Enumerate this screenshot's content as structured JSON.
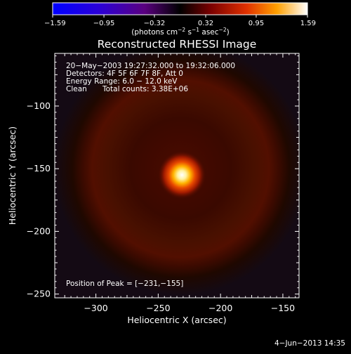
{
  "chart_data": {
    "type": "heatmap",
    "title": "Reconstructed RHESSI Image",
    "xlabel": "Heliocentric X (arcsec)",
    "ylabel": "Heliocentric Y (arcsec)",
    "xlim": [
      -333,
      -137
    ],
    "ylim": [
      -253,
      -58
    ],
    "xticks": [
      -300,
      -250,
      -200,
      -150
    ],
    "xtick_labels": [
      "−300",
      "−250",
      "−200",
      "−150"
    ],
    "yticks": [
      -100,
      -150,
      -200,
      -250
    ],
    "ytick_labels": [
      "−100",
      "−150",
      "−200",
      "−250"
    ],
    "colorbar": {
      "colormap": "red-temperature",
      "ticks": [
        -1.59,
        -0.95,
        -0.32,
        0.32,
        0.95,
        1.59
      ],
      "tick_labels": [
        "−1.59",
        "−0.95",
        "−0.32",
        "0.32",
        "0.95",
        "1.59"
      ],
      "unit_main": "(photons cm",
      "unit_exp1": "−2",
      "unit_mid": " s",
      "unit_exp2": "−1",
      "unit_end": " asec",
      "unit_exp3": "−2",
      "unit_close": ")"
    },
    "source": {
      "peak_x": -231,
      "peak_y": -155,
      "peak_value": 1.59,
      "ring_center_x": -232,
      "ring_center_y": -150
    },
    "annotations": {
      "time_range": "20−May−2003 19:27:32.000 to 19:32:06.000",
      "detectors": "Detectors: 4F 5F 6F 7F 8F, Att 0",
      "energy": "Energy Range: 6.0 − 12.0 keV",
      "clean_label": "Clean",
      "total_counts": "Total counts: 3.38E+06",
      "peak_position": "Position of Peak = [−231,−155]"
    }
  },
  "footer": {
    "date": "4−Jun−2013 14:35"
  }
}
